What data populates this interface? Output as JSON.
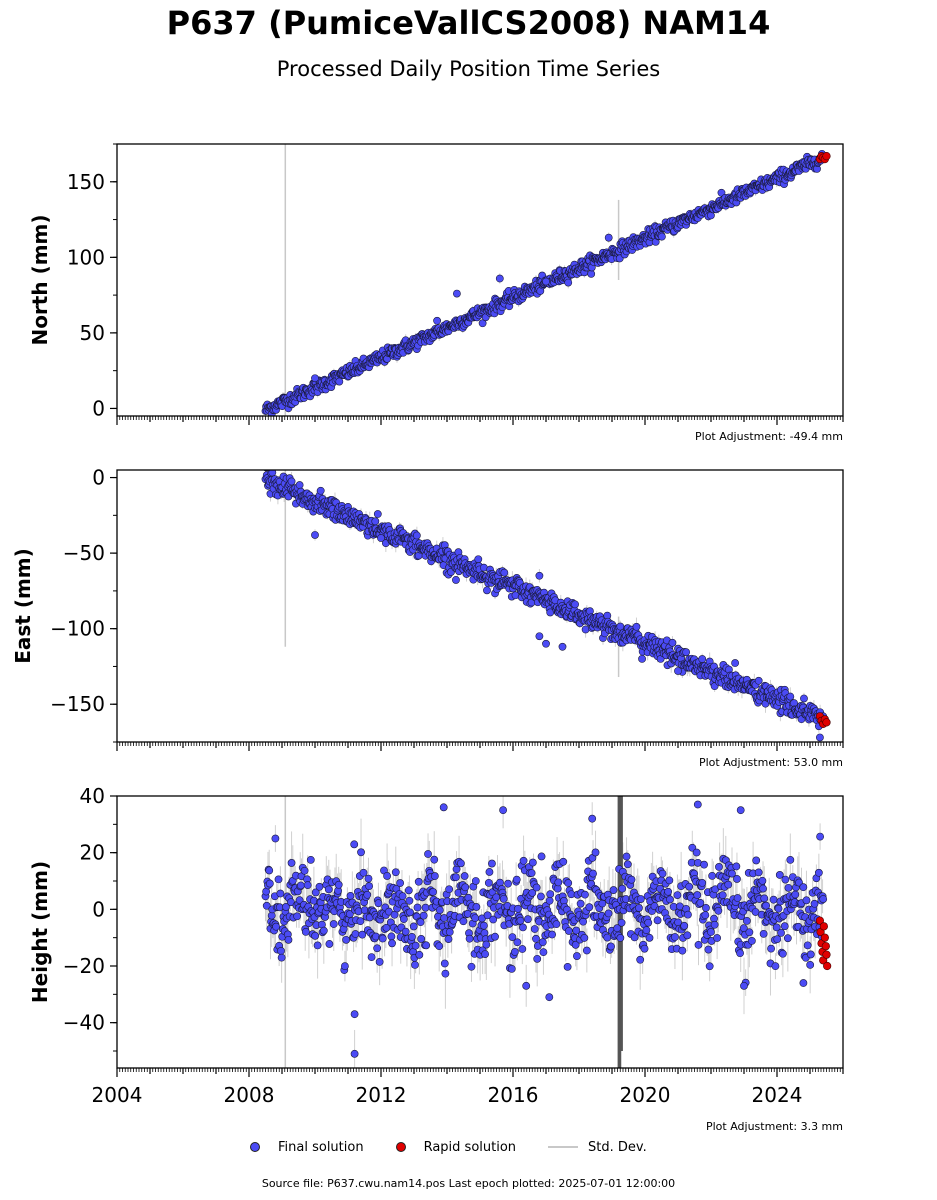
{
  "title": "P637 (PumiceVallCS2008) NAM14",
  "subtitle": "Processed Daily Position Time Series",
  "footer": "Source file: P637.cwu.nam14.pos  Last epoch plotted: 2025-07-01 12:00:00",
  "legend": {
    "final": "Final solution",
    "rapid": "Rapid solution",
    "stddev": "Std. Dev."
  },
  "colors": {
    "final": "#4b4bf5",
    "rapid": "#e00000",
    "stddev": "#c8c8c8"
  },
  "chart_data": [
    {
      "type": "scatter",
      "ylabel": "North (mm)",
      "ylim": [
        -5,
        175
      ],
      "yticks": [
        0,
        50,
        100,
        150
      ],
      "xlim": [
        2004,
        2026
      ],
      "xticks": [
        2004,
        2008,
        2012,
        2016,
        2020,
        2024
      ],
      "adjustment": "Plot Adjustment: -49.4 mm",
      "show_xtick_labels": false,
      "trend": [
        [
          2008.5,
          -1
        ],
        [
          2025.4,
          166
        ]
      ],
      "noise": 2.2,
      "outliers": [
        [
          2015.6,
          86
        ],
        [
          2014.3,
          76
        ],
        [
          2017.0,
          84
        ],
        [
          2010.0,
          20
        ],
        [
          2018.9,
          113
        ],
        [
          2013.7,
          58
        ]
      ],
      "vertical_errors": [
        [
          2009.1,
          -5,
          175
        ],
        [
          2019.2,
          85,
          138
        ]
      ],
      "rapid": [
        [
          2025.3,
          165
        ],
        [
          2025.35,
          167
        ],
        [
          2025.4,
          166
        ],
        [
          2025.45,
          165
        ],
        [
          2025.5,
          167
        ]
      ]
    },
    {
      "type": "scatter",
      "ylabel": "East (mm)",
      "ylim": [
        -175,
        5
      ],
      "yticks": [
        0,
        -50,
        -100,
        -150
      ],
      "xlim": [
        2004,
        2026
      ],
      "xticks": [
        2004,
        2008,
        2012,
        2016,
        2020,
        2024
      ],
      "adjustment": "Plot Adjustment: 53.0 mm",
      "show_xtick_labels": false,
      "trend": [
        [
          2008.5,
          -2
        ],
        [
          2025.4,
          -160
        ]
      ],
      "noise": 3.5,
      "outliers": [
        [
          2016.8,
          -65
        ],
        [
          2016.8,
          -105
        ],
        [
          2017.0,
          -110
        ],
        [
          2012.0,
          -40
        ],
        [
          2010.0,
          -38
        ],
        [
          2025.3,
          -172
        ],
        [
          2021.0,
          -128
        ],
        [
          2017.5,
          -112
        ]
      ],
      "vertical_errors": [
        [
          2009.1,
          -112,
          5
        ],
        [
          2019.2,
          -132,
          -92
        ]
      ],
      "rapid": [
        [
          2025.3,
          -158
        ],
        [
          2025.35,
          -161
        ],
        [
          2025.4,
          -163
        ],
        [
          2025.45,
          -160
        ],
        [
          2025.5,
          -162
        ]
      ]
    },
    {
      "type": "scatter",
      "ylabel": "Height (mm)",
      "ylim": [
        -56,
        40
      ],
      "yticks": [
        40,
        20,
        0,
        -20,
        -40
      ],
      "xlim": [
        2004,
        2026
      ],
      "xticks": [
        2004,
        2008,
        2012,
        2016,
        2020,
        2024
      ],
      "adjustment": "Plot Adjustment: 3.3 mm",
      "show_xtick_labels": true,
      "trend": [
        [
          2008.5,
          0
        ],
        [
          2025.4,
          0
        ]
      ],
      "noise": 7,
      "seasonal": 6,
      "outliers": [
        [
          2011.2,
          -51
        ],
        [
          2013.9,
          36
        ],
        [
          2015.7,
          35
        ],
        [
          2021.6,
          37
        ],
        [
          2018.4,
          32
        ],
        [
          2022.9,
          35
        ],
        [
          2008.8,
          25
        ],
        [
          2011.2,
          -37
        ],
        [
          2016.4,
          -27
        ],
        [
          2017.1,
          -31
        ],
        [
          2023.0,
          -27
        ],
        [
          2024.8,
          -26
        ]
      ],
      "vertical_errors": [
        [
          2009.1,
          -56,
          40
        ],
        [
          2019.2,
          -56,
          40
        ],
        [
          2019.25,
          -56,
          40
        ],
        [
          2019.3,
          -50,
          40
        ]
      ],
      "rapid": [
        [
          2025.3,
          -4
        ],
        [
          2025.32,
          -8
        ],
        [
          2025.35,
          -12
        ],
        [
          2025.38,
          -15
        ],
        [
          2025.4,
          -18
        ],
        [
          2025.42,
          -6
        ],
        [
          2025.45,
          -10
        ],
        [
          2025.48,
          -13
        ],
        [
          2025.5,
          -16
        ],
        [
          2025.52,
          -20
        ]
      ]
    }
  ]
}
